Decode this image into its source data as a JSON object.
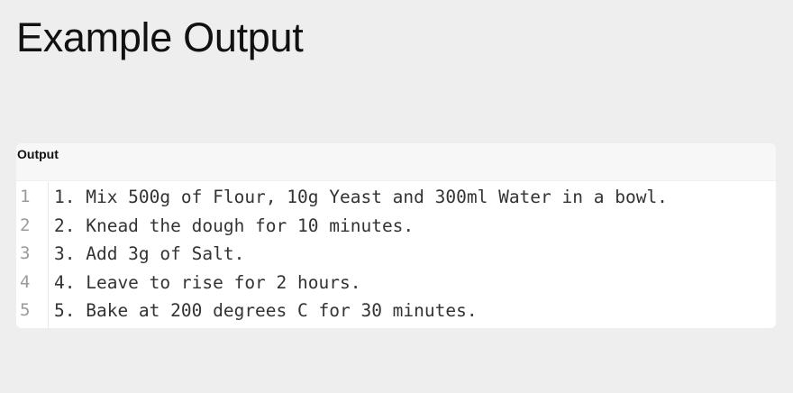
{
  "page": {
    "title": "Example Output"
  },
  "output": {
    "label": "Output",
    "lines": [
      {
        "number": "1",
        "text": "1. Mix 500g of Flour, 10g Yeast and 300ml Water in a bowl."
      },
      {
        "number": "2",
        "text": "2. Knead the dough for 10 minutes."
      },
      {
        "number": "3",
        "text": "3. Add 3g of Salt."
      },
      {
        "number": "4",
        "text": "4. Leave to rise for 2 hours."
      },
      {
        "number": "5",
        "text": "5. Bake at 200 degrees C for 30 minutes."
      }
    ]
  },
  "colors": {
    "background": "#eeeeee",
    "panel": "#ffffff",
    "header": "#f7f7f7",
    "line_number": "#9a9a9a",
    "code_text": "#333333"
  }
}
